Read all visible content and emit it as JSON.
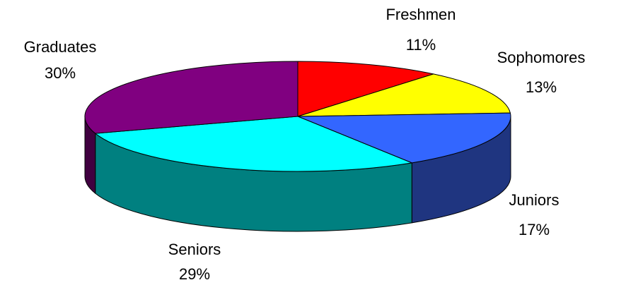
{
  "chart_data": {
    "type": "pie",
    "categories": [
      "Freshmen",
      "Sophomores",
      "Juniors",
      "Seniors",
      "Graduates"
    ],
    "values": [
      11,
      13,
      17,
      29,
      30
    ],
    "value_labels": [
      "11%",
      "13%",
      "17%",
      "29%",
      "30%"
    ],
    "colors": [
      "#ff0000",
      "#ffff00",
      "#3366ff",
      "#00ffff",
      "#800080"
    ],
    "side_colors": [
      "#800000",
      "#808000",
      "#1f3580",
      "#008080",
      "#400040"
    ]
  }
}
